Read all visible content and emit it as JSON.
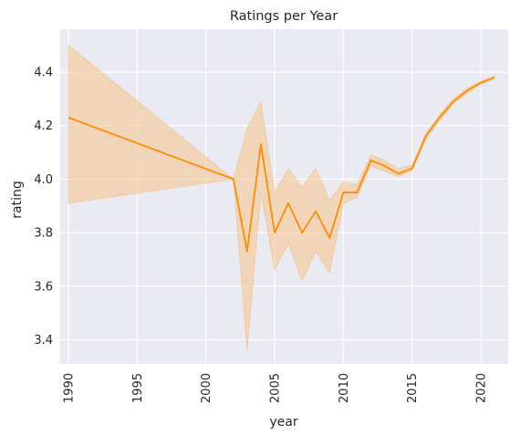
{
  "chart_data": {
    "type": "line",
    "title": "Ratings per Year",
    "xlabel": "year",
    "ylabel": "rating",
    "xlim": [
      1989.4,
      2022.0
    ],
    "ylim": [
      3.31,
      4.56
    ],
    "grid": true,
    "legend": "none",
    "xticks": [
      1990,
      1995,
      2000,
      2005,
      2010,
      2015,
      2020
    ],
    "yticks": [
      3.4,
      3.6,
      3.8,
      4.0,
      4.2,
      4.4
    ],
    "ytick_labels": [
      "3.4",
      "3.6",
      "3.8",
      "4.0",
      "4.2",
      "4.4"
    ],
    "series": [
      {
        "x": [
          1990,
          2002,
          2003,
          2004,
          2005,
          2006,
          2007,
          2008,
          2009,
          2010,
          2011,
          2012,
          2013,
          2014,
          2015,
          2016,
          2017,
          2018,
          2019,
          2020,
          2021
        ],
        "y": [
          4.23,
          4.0,
          3.73,
          4.13,
          3.8,
          3.91,
          3.8,
          3.88,
          3.78,
          3.95,
          3.95,
          4.07,
          4.05,
          4.02,
          4.04,
          4.16,
          4.23,
          4.29,
          4.33,
          4.36,
          4.38
        ],
        "ci_lower": [
          3.91,
          4.0,
          3.36,
          3.95,
          3.66,
          3.76,
          3.62,
          3.73,
          3.65,
          3.91,
          3.93,
          4.05,
          4.03,
          4.01,
          4.03,
          4.15,
          4.22,
          4.28,
          4.32,
          4.355,
          4.375
        ],
        "ci_upper": [
          4.5,
          4.0,
          4.19,
          4.29,
          3.95,
          4.04,
          3.97,
          4.04,
          3.92,
          3.99,
          3.98,
          4.09,
          4.07,
          4.04,
          4.05,
          4.17,
          4.24,
          4.3,
          4.34,
          4.365,
          4.385
        ]
      }
    ],
    "colors": {
      "line": "#ff8c00",
      "band": "#f4c38a",
      "plot_background": "#eaeaf2",
      "grid": "#ffffff",
      "text": "#262626"
    }
  }
}
